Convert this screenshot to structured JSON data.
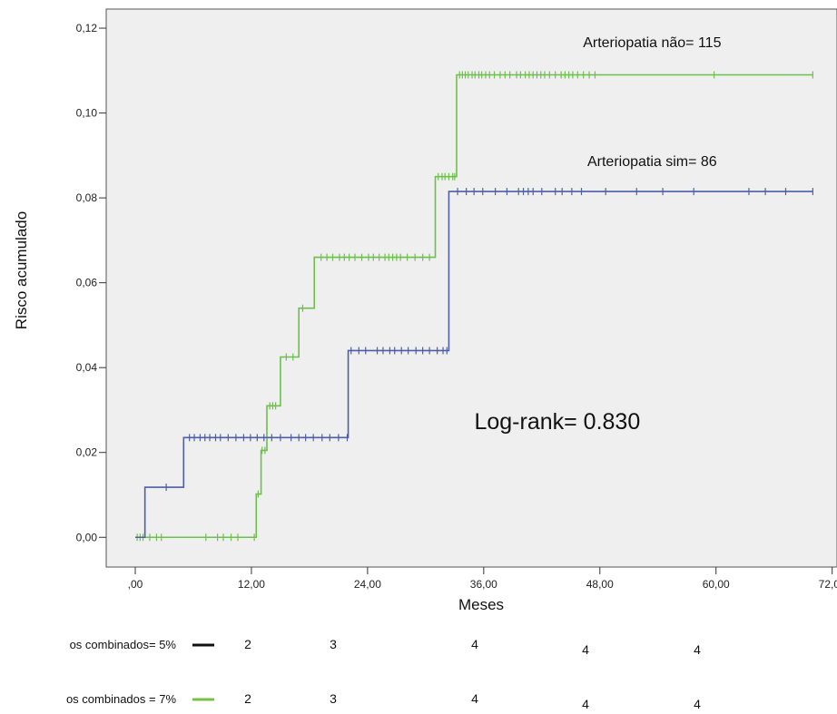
{
  "chart_data": {
    "type": "line",
    "title": "",
    "xlabel": "Meses",
    "ylabel": "Risco acumulado",
    "xlim": [
      -3,
      72.5
    ],
    "ylim": [
      -0.007,
      0.1245
    ],
    "x_ticks": [
      0,
      12,
      24,
      36,
      48,
      60,
      72
    ],
    "x_tick_labels": [
      ",00",
      "12,00",
      "24,00",
      "36,00",
      "48,00",
      "60,00",
      "72,00"
    ],
    "y_ticks": [
      0.0,
      0.02,
      0.04,
      0.06,
      0.08,
      0.1,
      0.12
    ],
    "y_tick_labels": [
      "0,00",
      "0,02",
      "0,04",
      "0,06",
      "0,08",
      "0,10",
      "0,12"
    ],
    "grid": false,
    "background_color": "#efefef",
    "series": [
      {
        "color": "#6ebf4e",
        "steps": [
          [
            0,
            0.0
          ],
          [
            12.5,
            0.0102
          ],
          [
            13.0,
            0.0205
          ],
          [
            13.6,
            0.031
          ],
          [
            15.0,
            0.0425
          ],
          [
            16.9,
            0.054
          ],
          [
            18.5,
            0.066
          ],
          [
            31.0,
            0.085
          ],
          [
            33.2,
            0.109
          ],
          [
            70,
            0.109
          ]
        ],
        "censor_x": [
          0.2,
          0.5,
          0.8,
          1.5,
          2.2,
          2.7,
          7.3,
          8.5,
          9.1,
          9.9,
          10.6,
          12.3,
          12.7,
          13.1,
          13.4,
          13.9,
          14.2,
          14.5,
          15.6,
          16.3,
          17.3,
          19.2,
          19.8,
          20.4,
          21.1,
          21.6,
          22.1,
          22.7,
          23.4,
          24.1,
          24.6,
          25.2,
          25.8,
          26.2,
          26.6,
          27.0,
          27.4,
          28.1,
          28.9,
          29.7,
          30.4,
          31.3,
          31.7,
          32.0,
          32.4,
          32.8,
          33.0,
          33.5,
          33.8,
          34.1,
          34.4,
          34.8,
          35.1,
          35.5,
          35.8,
          36.2,
          36.6,
          37.1,
          37.7,
          38.2,
          38.7,
          39.4,
          39.8,
          40.3,
          40.7,
          41.1,
          41.5,
          41.9,
          42.3,
          42.8,
          43.4,
          44.0,
          44.4,
          44.8,
          45.2,
          45.7,
          46.3,
          46.9,
          47.5,
          59.8,
          70.0
        ]
      },
      {
        "color": "#4d5fa6",
        "steps": [
          [
            0,
            0.0
          ],
          [
            0.5,
            0.0
          ],
          [
            1.0,
            0.0118
          ],
          [
            5.0,
            0.0235
          ],
          [
            22.0,
            0.044
          ],
          [
            32.4,
            0.0815
          ],
          [
            70,
            0.0815
          ]
        ],
        "censor_x": [
          3.2,
          5.6,
          6.1,
          6.7,
          7.2,
          7.7,
          8.3,
          8.8,
          9.6,
          10.4,
          11.2,
          11.9,
          12.6,
          13.3,
          14.1,
          15.0,
          16.1,
          16.9,
          17.6,
          18.4,
          19.3,
          20.1,
          21.0,
          21.9,
          22.3,
          23.1,
          23.8,
          25.0,
          25.6,
          26.3,
          26.8,
          27.5,
          28.2,
          29.0,
          29.7,
          30.4,
          31.2,
          31.8,
          32.2,
          33.3,
          34.2,
          35.0,
          35.9,
          37.2,
          38.4,
          39.6,
          40.1,
          40.6,
          41.1,
          42.0,
          43.4,
          44.1,
          45.1,
          46.1,
          48.6,
          51.8,
          54.5,
          57.7,
          63.4,
          65.1,
          67.2,
          70.0
        ]
      }
    ],
    "annotations": [
      {
        "text": "Arteriopatia não= 115",
        "x": 53.4,
        "y": 0.1155
      },
      {
        "text": "Arteriopatia sim= 86",
        "x": 53.4,
        "y": 0.0875
      },
      {
        "text": "Log-rank= 0.830",
        "x": 43.6,
        "y": 0.0255
      }
    ],
    "risk_table": {
      "rows": [
        {
          "label": "os combinados= 5%",
          "line_color": "#111111",
          "values": [
            "2",
            "3",
            "4",
            "4",
            "4"
          ]
        },
        {
          "label": "os combinados = 7%",
          "line_color": "#7ac143",
          "values": [
            "2",
            "3",
            "4",
            "4",
            "4"
          ]
        }
      ]
    }
  }
}
